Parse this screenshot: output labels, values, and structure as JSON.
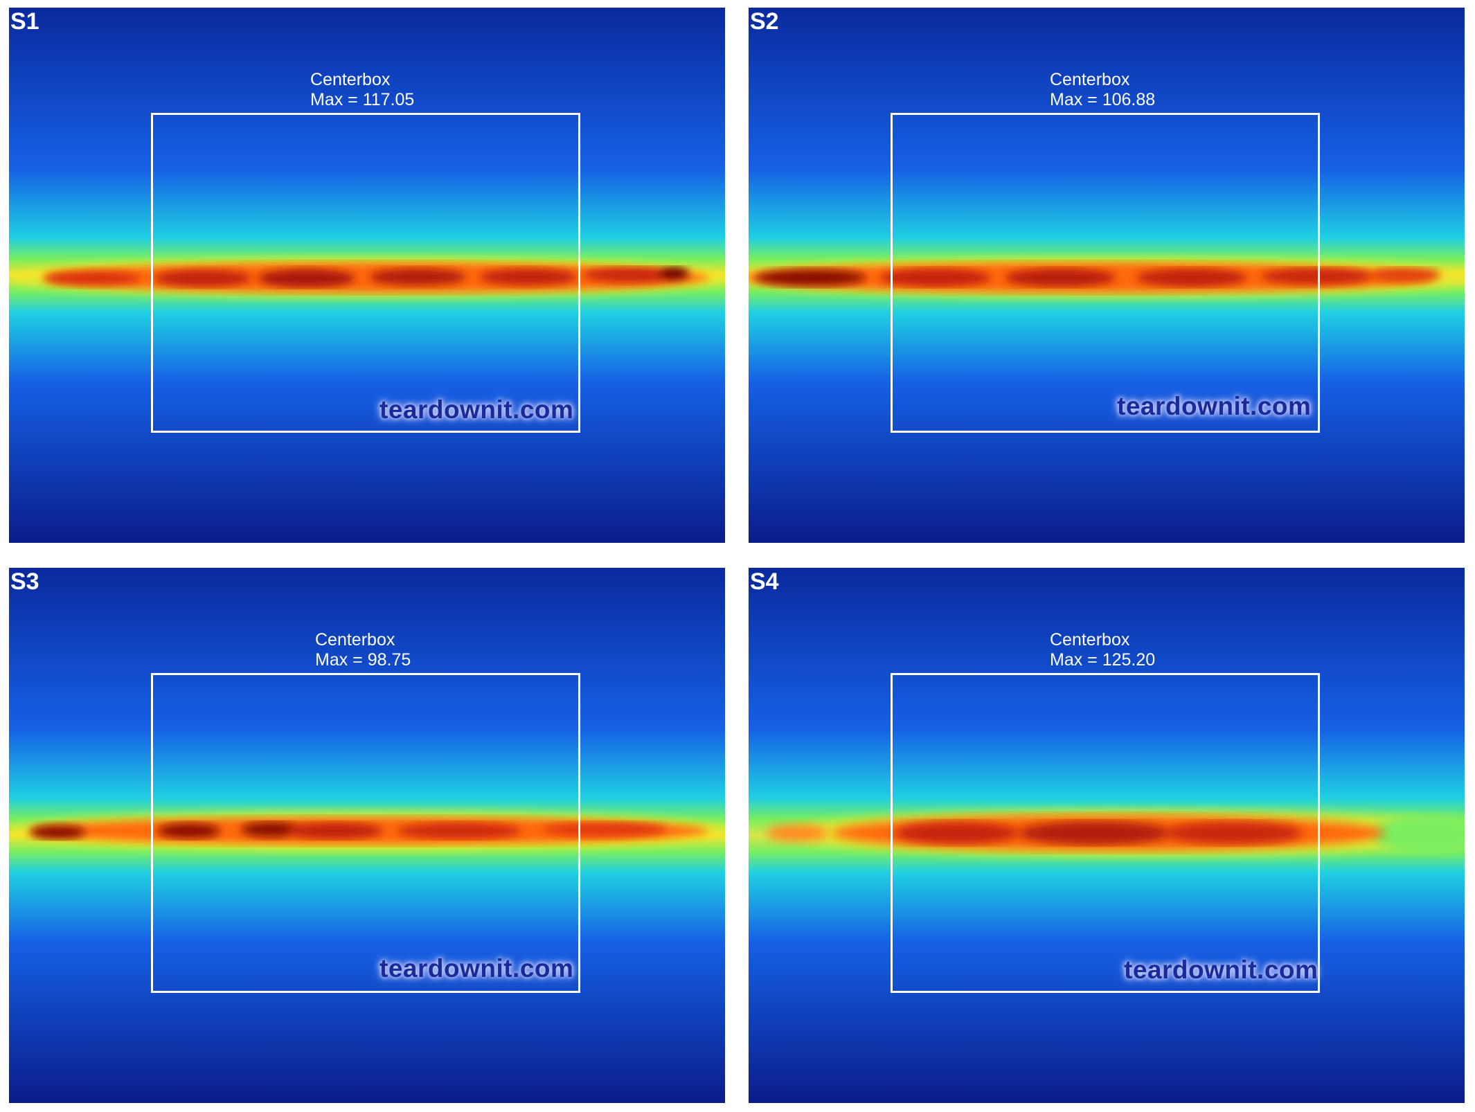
{
  "panels": [
    {
      "label": "S1",
      "caption_title": "Centerbox",
      "caption_max": "Max = 117.05",
      "watermark": "teardownit.com"
    },
    {
      "label": "S2",
      "caption_title": "Centerbox",
      "caption_max": "Max = 106.88",
      "watermark": "teardownit.com"
    },
    {
      "label": "S3",
      "caption_title": "Centerbox",
      "caption_max": "Max = 98.75",
      "watermark": "teardownit.com"
    },
    {
      "label": "S4",
      "caption_title": "Centerbox",
      "caption_max": "Max = 125.20",
      "watermark": "teardownit.com"
    }
  ],
  "colors": {
    "background_blue": "#0a1f8f",
    "mid_blue": "#1560e0",
    "cyan": "#1fd0e0",
    "green": "#7aee60",
    "yellow": "#f6e62a",
    "orange": "#ff6a10",
    "red": "#e02a08",
    "dark_red": "#8a0a04",
    "box_line": "#ffffff"
  }
}
